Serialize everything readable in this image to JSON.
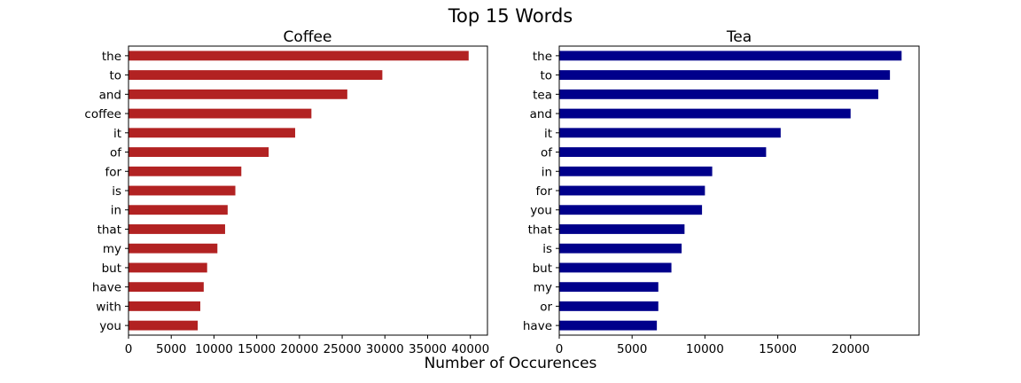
{
  "figure": {
    "title": "Top 15 Words",
    "xlabel": "Number of Occurences"
  },
  "chart_data": [
    {
      "type": "bar",
      "orientation": "horizontal",
      "title": "Coffee",
      "color": "#b22222",
      "categories": [
        "the",
        "to",
        "and",
        "coffee",
        "it",
        "of",
        "for",
        "is",
        "in",
        "that",
        "my",
        "but",
        "have",
        "with",
        "you"
      ],
      "values": [
        39800,
        29700,
        25600,
        21400,
        19500,
        16400,
        13200,
        12500,
        11600,
        11300,
        10400,
        9200,
        8800,
        8400,
        8100
      ],
      "xlim": [
        0,
        42000
      ],
      "xticks": [
        0,
        5000,
        10000,
        15000,
        20000,
        25000,
        30000,
        35000,
        40000
      ],
      "xlabel": "",
      "ylabel": "",
      "grid": false
    },
    {
      "type": "bar",
      "orientation": "horizontal",
      "title": "Tea",
      "color": "#00008b",
      "categories": [
        "the",
        "to",
        "tea",
        "and",
        "it",
        "of",
        "in",
        "for",
        "you",
        "that",
        "is",
        "but",
        "my",
        "or",
        "have"
      ],
      "values": [
        23500,
        22700,
        21900,
        20000,
        15200,
        14200,
        10500,
        10000,
        9800,
        8600,
        8400,
        7700,
        6800,
        6800,
        6700
      ],
      "xlim": [
        0,
        24700
      ],
      "xticks": [
        0,
        5000,
        10000,
        15000,
        20000
      ],
      "xlabel": "",
      "ylabel": "",
      "grid": false
    }
  ]
}
